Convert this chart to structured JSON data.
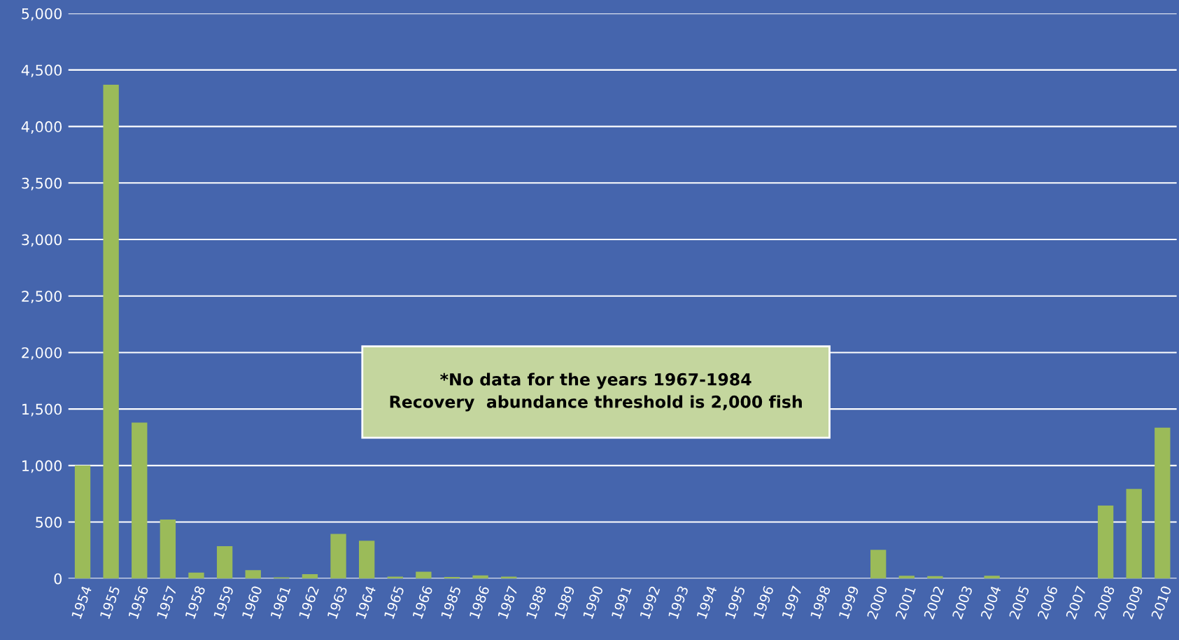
{
  "chart_data": {
    "type": "bar",
    "categories": [
      "1954",
      "1955",
      "1956",
      "1957",
      "1958",
      "1959",
      "1960",
      "1961",
      "1962",
      "1963",
      "1964",
      "1965",
      "1966",
      "1985",
      "1986",
      "1987",
      "1988",
      "1989",
      "1990",
      "1991",
      "1992",
      "1993",
      "1994",
      "1995",
      "1996",
      "1997",
      "1998",
      "1999",
      "2000",
      "2001",
      "2002",
      "2003",
      "2004",
      "2005",
      "2006",
      "2007",
      "2008",
      "2009",
      "2010"
    ],
    "values": [
      1000,
      4370,
      1380,
      522,
      52,
      287,
      75,
      11,
      39,
      395,
      334,
      17,
      61,
      14,
      28,
      17,
      0,
      0,
      0,
      0,
      0,
      null,
      0,
      0,
      0,
      0,
      0,
      null,
      254,
      25,
      21,
      0,
      25,
      null,
      0,
      0,
      646,
      793,
      1335
    ],
    "color": "#9bbb59",
    "ylim": [
      0,
      5000
    ],
    "yticks": [
      {
        "value": 0,
        "label": "0"
      },
      {
        "value": 500,
        "label": "500"
      },
      {
        "value": 1000,
        "label": "1,000"
      },
      {
        "value": 1500,
        "label": "1,500"
      },
      {
        "value": 2000,
        "label": "2,000"
      },
      {
        "value": 2500,
        "label": "2,500"
      },
      {
        "value": 3000,
        "label": "3,000"
      },
      {
        "value": 3500,
        "label": "3,500"
      },
      {
        "value": 4000,
        "label": "4,000"
      },
      {
        "value": 4500,
        "label": "4,500"
      },
      {
        "value": 5000,
        "label": "5,000"
      }
    ],
    "grid": "y",
    "annotations": [
      "*No data for the years 1967-1984\nRecovery  abundance threshold is 2,000 fish"
    ]
  }
}
